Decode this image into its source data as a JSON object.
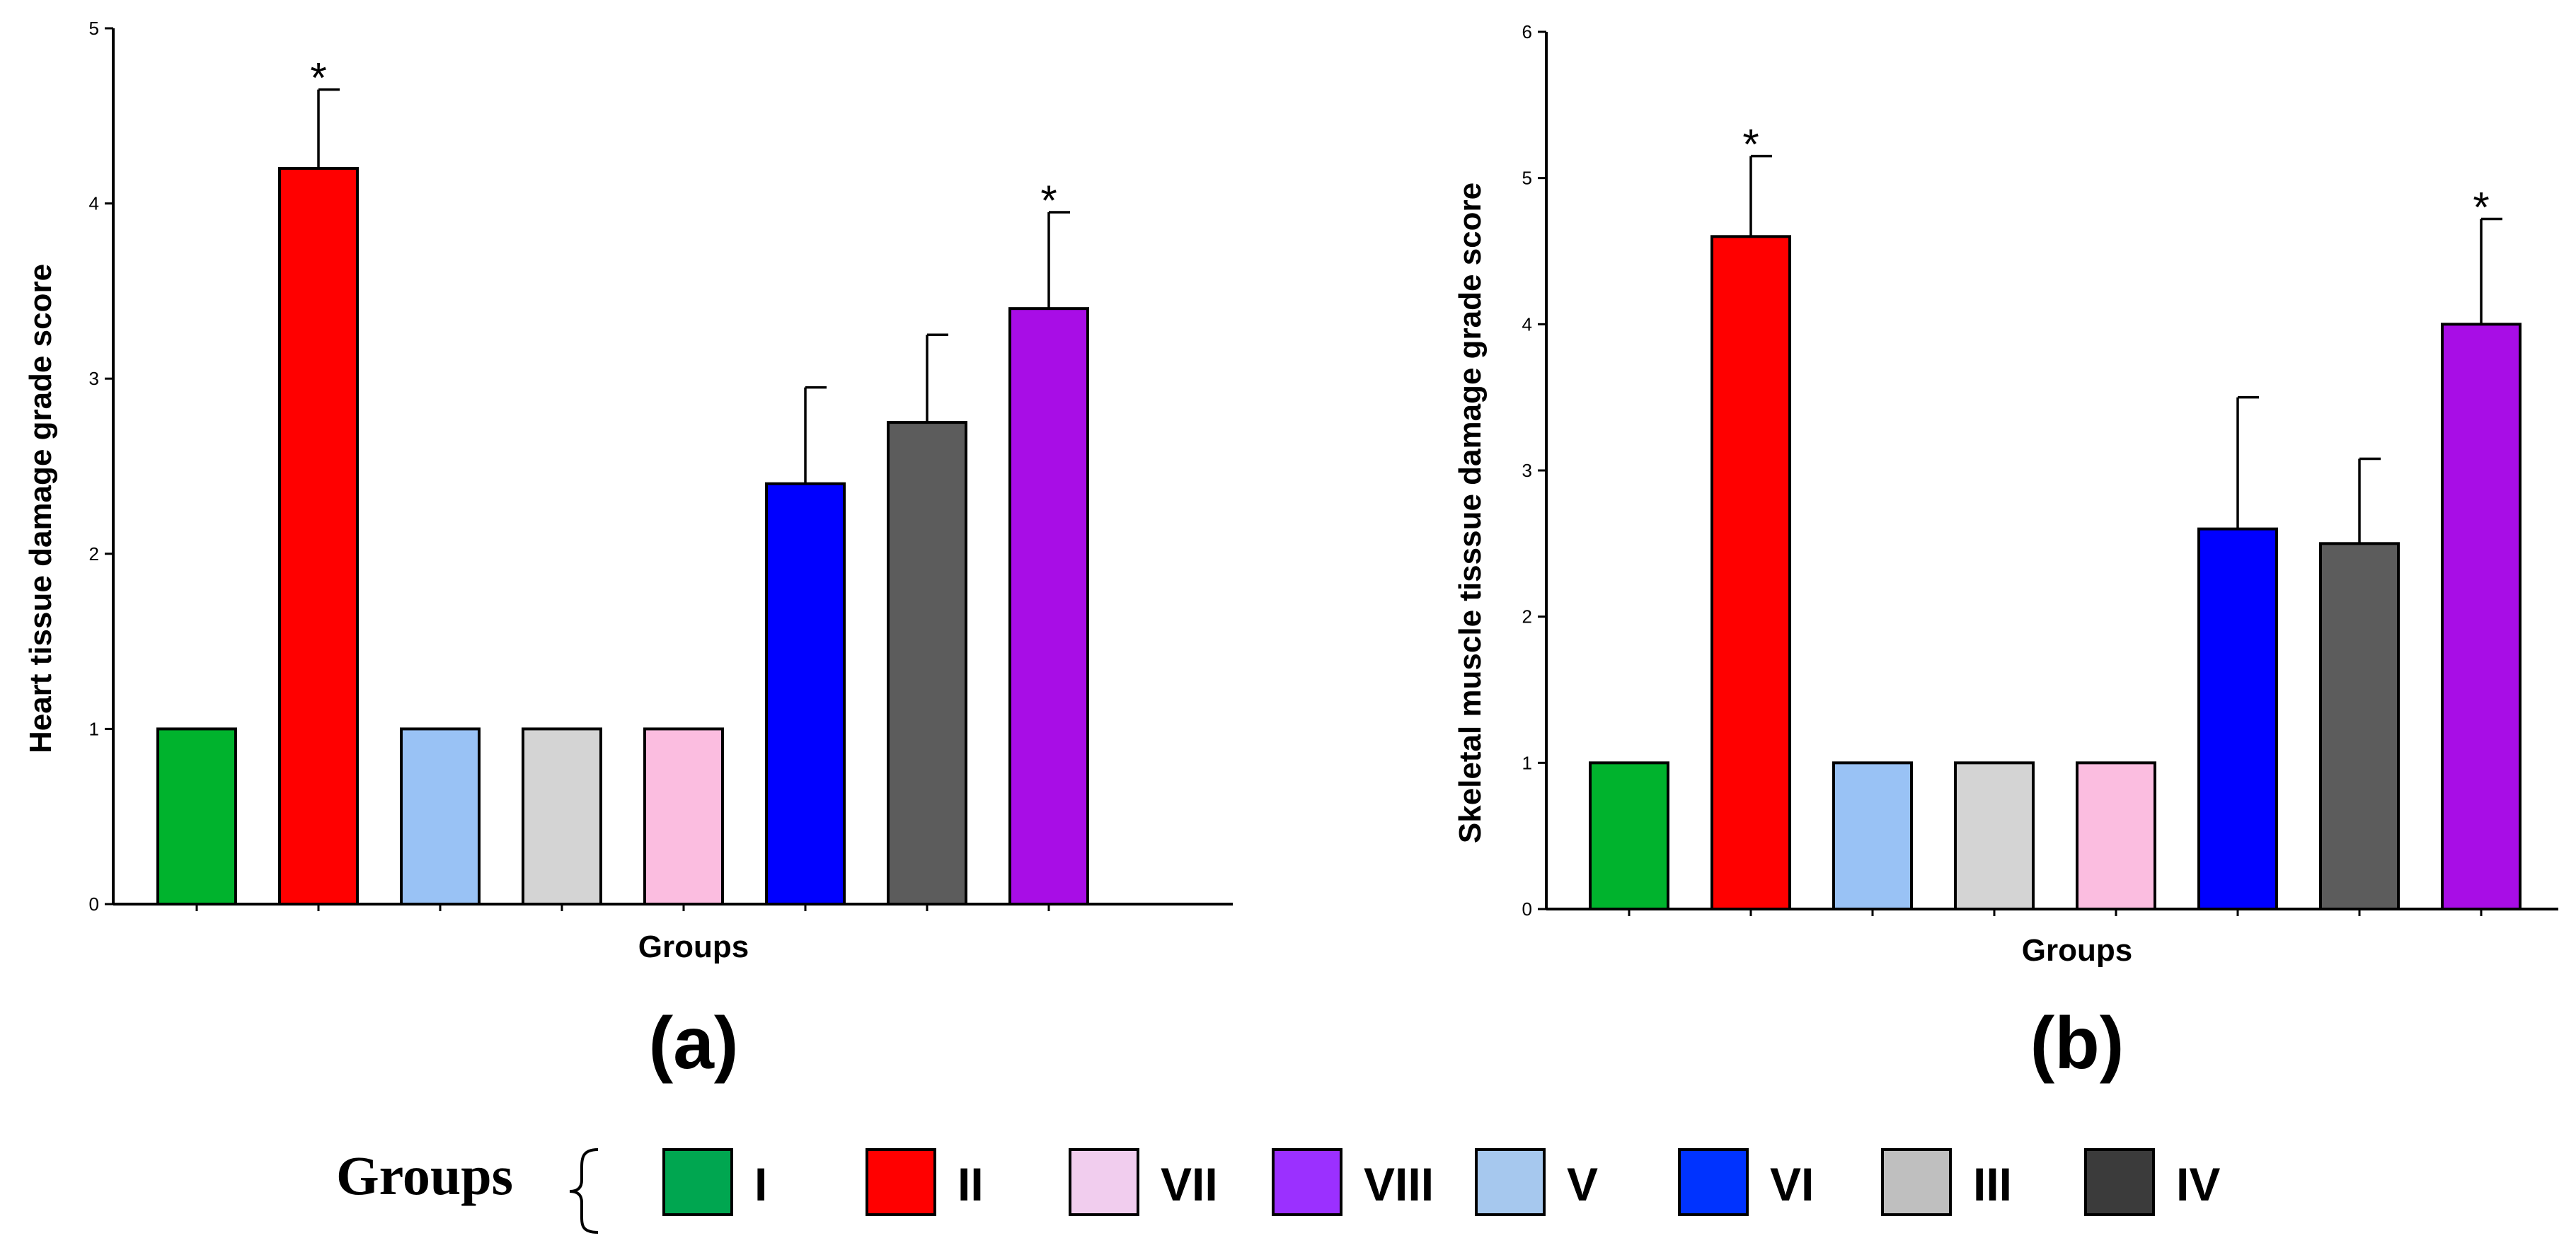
{
  "chart_data": [
    {
      "type": "bar",
      "panel_label": "(a)",
      "xlabel": "Groups",
      "ylabel": "Heart tissue damage grade score",
      "ylim": [
        0,
        5
      ],
      "yticks": [
        0,
        1,
        2,
        3,
        4,
        5
      ],
      "bars": [
        {
          "group": "I",
          "value": 1.0,
          "error": 0,
          "star": "",
          "color": "#00b32d"
        },
        {
          "group": "II",
          "value": 4.2,
          "error": 0.45,
          "star": "*",
          "color": "#ff0000"
        },
        {
          "group": "V",
          "value": 1.0,
          "error": 0,
          "star": "",
          "color": "#99c2f5"
        },
        {
          "group": "III",
          "value": 1.0,
          "error": 0,
          "star": "",
          "color": "#d4d4d4"
        },
        {
          "group": "VII",
          "value": 1.0,
          "error": 0,
          "star": "",
          "color": "#fbbde0"
        },
        {
          "group": "VI",
          "value": 2.4,
          "error": 0.55,
          "star": "",
          "color": "#0000ff"
        },
        {
          "group": "IV",
          "value": 2.75,
          "error": 0.5,
          "star": "",
          "color": "#5c5c5c"
        },
        {
          "group": "VIII",
          "value": 3.4,
          "error": 0.55,
          "star": "*",
          "color": "#a80de6"
        }
      ]
    },
    {
      "type": "bar",
      "panel_label": "(b)",
      "xlabel": "Groups",
      "ylabel": "Skeletal muscle tisssue damage grade score",
      "ylim": [
        0,
        6
      ],
      "yticks": [
        0,
        1,
        2,
        3,
        4,
        5,
        6
      ],
      "bars": [
        {
          "group": "I",
          "value": 1.0,
          "error": 0,
          "star": "",
          "color": "#00b32d"
        },
        {
          "group": "II",
          "value": 4.6,
          "error": 0.55,
          "star": "*",
          "color": "#ff0000"
        },
        {
          "group": "V",
          "value": 1.0,
          "error": 0,
          "star": "",
          "color": "#99c2f5"
        },
        {
          "group": "III",
          "value": 1.0,
          "error": 0,
          "star": "",
          "color": "#d4d4d4"
        },
        {
          "group": "VII",
          "value": 1.0,
          "error": 0,
          "star": "",
          "color": "#fbbde0"
        },
        {
          "group": "VI",
          "value": 2.6,
          "error": 0.9,
          "star": "",
          "color": "#0000ff"
        },
        {
          "group": "IV",
          "value": 2.5,
          "error": 0.58,
          "star": "",
          "color": "#5c5c5c"
        },
        {
          "group": "VIII",
          "value": 4.0,
          "error": 0.72,
          "star": "*",
          "color": "#a80de6"
        }
      ]
    }
  ],
  "legend": {
    "title": "Groups",
    "brace": "{",
    "items": [
      {
        "label": "I",
        "color": "#00a650"
      },
      {
        "label": "II",
        "color": "#ff0000"
      },
      {
        "label": "VII",
        "color": "#f1cdee"
      },
      {
        "label": "VIII",
        "color": "#9b30ff"
      },
      {
        "label": "V",
        "color": "#a6c8ee"
      },
      {
        "label": "VI",
        "color": "#0033ff"
      },
      {
        "label": "III",
        "color": "#bfbfbf"
      },
      {
        "label": "IV",
        "color": "#3b3b3b"
      }
    ]
  }
}
